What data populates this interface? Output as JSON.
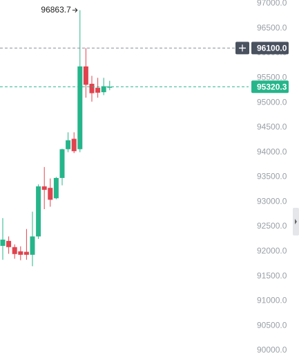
{
  "chart_data": {
    "type": "candlestick",
    "up_color": "#26b58a",
    "down_color": "#e0434e",
    "open": [
      92110,
      92210,
      92085,
      92000,
      91990,
      91930,
      92300,
      93310,
      93280,
      93070,
      93480,
      94060,
      94270,
      94060,
      95730,
      95380,
      95300,
      95210,
      95300
    ],
    "high": [
      92670,
      92300,
      92140,
      92100,
      92450,
      92800,
      93350,
      93700,
      93470,
      93500,
      94070,
      94400,
      94400,
      96863.7,
      96100,
      95540,
      95500,
      95500,
      95440
    ],
    "low": [
      91830,
      91950,
      91850,
      91820,
      91830,
      91700,
      92250,
      92850,
      92900,
      93050,
      93330,
      94000,
      93980,
      94000,
      95100,
      95020,
      95100,
      95150,
      95250
    ],
    "close": [
      92236,
      92085,
      91945,
      91930,
      91930,
      92300,
      93310,
      93240,
      93040,
      93480,
      94060,
      94240,
      94020,
      95730,
      95360,
      95190,
      95200,
      95330,
      95320.3
    ],
    "crosshair": {
      "value": 96100,
      "label": "96100.0"
    },
    "ylim": [
      90000,
      97000
    ],
    "yticks": [
      {
        "value": 90000,
        "label": "90000.0"
      },
      {
        "value": 90500,
        "label": "90500.0"
      },
      {
        "value": 91000,
        "label": "91000.0"
      },
      {
        "value": 91500,
        "label": "91500.0"
      },
      {
        "value": 92000,
        "label": "92000.0"
      },
      {
        "value": 92500,
        "label": "92500.0"
      },
      {
        "value": 93000,
        "label": "93000.0"
      },
      {
        "value": 93500,
        "label": "93500.0"
      },
      {
        "value": 94000,
        "label": "94000.0"
      },
      {
        "value": 94500,
        "label": "94500.0"
      },
      {
        "value": 95000,
        "label": "95000.0"
      },
      {
        "value": 95500,
        "label": "95500.0"
      },
      {
        "value": 96000,
        "label": "96000.0"
      },
      {
        "value": 96500,
        "label": "96500.0"
      },
      {
        "value": 97000,
        "label": "97000.0"
      }
    ]
  }
}
